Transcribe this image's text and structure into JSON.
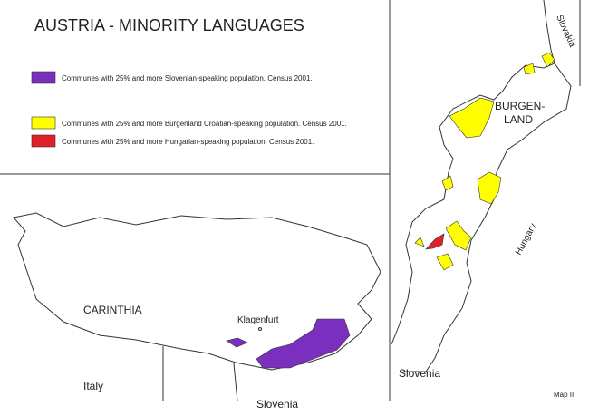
{
  "title": "AUSTRIA - MINORITY LANGUAGES",
  "legend": [
    {
      "label": "Communes with 25% and more Slovenian-speaking population. Census 2001.",
      "color": "#7b2fbe"
    },
    {
      "label": "Communes with 25% and more Burgenland Croatian-speaking population. Census 2001.",
      "color": "#ffff00"
    },
    {
      "label": "Communes with 25% and more Hungarian-speaking population. Census 2001.",
      "color": "#e0202a"
    }
  ],
  "labels": {
    "carinthia": "CARINTHIA",
    "klagenfurt": "Klagenfurt",
    "italy": "Italy",
    "slovenia_south": "Slovenia",
    "slovenia_east": "Slovenia",
    "burgenland": [
      "BURGEN-",
      "LAND"
    ],
    "hungary": "Hungary",
    "slovakia": "Slovakia",
    "map_number": "Map II"
  }
}
